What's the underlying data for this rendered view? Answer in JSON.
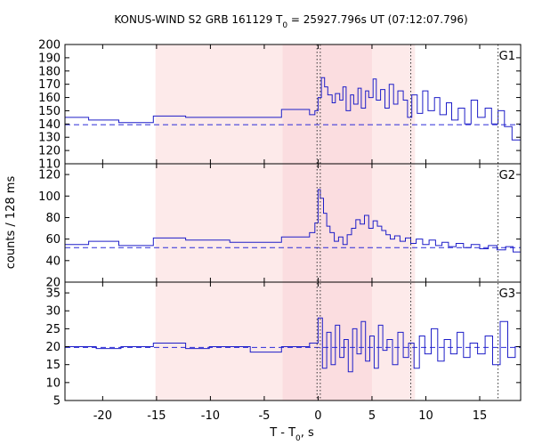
{
  "chart_data": {
    "type": "line",
    "title": "KONUS-WIND S2 GRB 161129 T",
    "title_sub": "0",
    "title_rest": " = 25927.796s UT (07:12:07.796)",
    "xlabel": "T - T",
    "xlabel_sub": "0",
    "xlabel_rest": ", s",
    "ylabel": "counts / 128 ms",
    "xlim": [
      -23.5,
      18.8
    ],
    "xticks": [
      "-20",
      "-15",
      "-10",
      "-5",
      "0",
      "5",
      "10",
      "15"
    ],
    "xtick_values": [
      -20,
      -15,
      -10,
      -5,
      0,
      5,
      10,
      15
    ],
    "shaded_regions": [
      {
        "from": -15.1,
        "to": 9.0,
        "color": "#fdeaea"
      },
      {
        "from": -3.3,
        "to": 5.0,
        "color": "#fbdde0"
      }
    ],
    "vertical_markers": [
      -0.1,
      0.2,
      8.6,
      16.7
    ],
    "panels": [
      {
        "name": "G1",
        "ylim": [
          110,
          200
        ],
        "yticks": [
          "110",
          "120",
          "130",
          "140",
          "150",
          "160",
          "170",
          "180",
          "190",
          "200"
        ],
        "ytick_values": [
          110,
          120,
          130,
          140,
          150,
          160,
          170,
          180,
          190,
          200
        ],
        "background": 139.5,
        "series": [
          [
            -23.5,
            145
          ],
          [
            -21.3,
            143
          ],
          [
            -18.5,
            141
          ],
          [
            -15.3,
            146
          ],
          [
            -12.3,
            145
          ],
          [
            -8.2,
            145
          ],
          [
            -3.4,
            151
          ],
          [
            -0.8,
            147
          ],
          [
            -0.3,
            150
          ],
          [
            0.0,
            160
          ],
          [
            0.3,
            175
          ],
          [
            0.6,
            168
          ],
          [
            0.9,
            162
          ],
          [
            1.3,
            156
          ],
          [
            1.6,
            163
          ],
          [
            2.0,
            158
          ],
          [
            2.3,
            168
          ],
          [
            2.6,
            150
          ],
          [
            3.0,
            162
          ],
          [
            3.3,
            155
          ],
          [
            3.7,
            167
          ],
          [
            4.0,
            152
          ],
          [
            4.4,
            165
          ],
          [
            4.7,
            160
          ],
          [
            5.1,
            174
          ],
          [
            5.4,
            158
          ],
          [
            5.8,
            166
          ],
          [
            6.2,
            152
          ],
          [
            6.6,
            170
          ],
          [
            7.0,
            155
          ],
          [
            7.4,
            165
          ],
          [
            7.9,
            158
          ],
          [
            8.3,
            145
          ],
          [
            8.7,
            162
          ],
          [
            9.2,
            148
          ],
          [
            9.7,
            165
          ],
          [
            10.2,
            150
          ],
          [
            10.8,
            160
          ],
          [
            11.3,
            147
          ],
          [
            11.9,
            156
          ],
          [
            12.4,
            143
          ],
          [
            13.0,
            152
          ],
          [
            13.6,
            140
          ],
          [
            14.2,
            158
          ],
          [
            14.8,
            145
          ],
          [
            15.5,
            152
          ],
          [
            16.1,
            140
          ],
          [
            16.7,
            150
          ],
          [
            17.3,
            138
          ],
          [
            18.0,
            128
          ],
          [
            18.8,
            136
          ]
        ]
      },
      {
        "name": "G2",
        "ylim": [
          20,
          130
        ],
        "yticks": [
          "20",
          "40",
          "60",
          "80",
          "100",
          "120"
        ],
        "ytick_values": [
          20,
          40,
          60,
          80,
          100,
          120
        ],
        "background": 52,
        "series": [
          [
            -23.5,
            55
          ],
          [
            -21.3,
            58
          ],
          [
            -18.5,
            54
          ],
          [
            -15.3,
            61
          ],
          [
            -12.3,
            59
          ],
          [
            -8.2,
            57
          ],
          [
            -3.4,
            62
          ],
          [
            -0.8,
            66
          ],
          [
            -0.3,
            75
          ],
          [
            0.0,
            106
          ],
          [
            0.2,
            98
          ],
          [
            0.5,
            84
          ],
          [
            0.8,
            72
          ],
          [
            1.1,
            66
          ],
          [
            1.5,
            58
          ],
          [
            1.9,
            62
          ],
          [
            2.3,
            55
          ],
          [
            2.7,
            64
          ],
          [
            3.1,
            70
          ],
          [
            3.5,
            78
          ],
          [
            3.9,
            74
          ],
          [
            4.3,
            82
          ],
          [
            4.7,
            70
          ],
          [
            5.1,
            77
          ],
          [
            5.5,
            72
          ],
          [
            5.9,
            68
          ],
          [
            6.3,
            64
          ],
          [
            6.7,
            60
          ],
          [
            7.1,
            63
          ],
          [
            7.6,
            58
          ],
          [
            8.1,
            61
          ],
          [
            8.6,
            56
          ],
          [
            9.1,
            60
          ],
          [
            9.7,
            55
          ],
          [
            10.3,
            59
          ],
          [
            10.9,
            54
          ],
          [
            11.5,
            57
          ],
          [
            12.1,
            53
          ],
          [
            12.8,
            56
          ],
          [
            13.5,
            52
          ],
          [
            14.2,
            55
          ],
          [
            15.0,
            51
          ],
          [
            15.8,
            54
          ],
          [
            16.6,
            50
          ],
          [
            17.4,
            53
          ],
          [
            18.1,
            48
          ],
          [
            18.8,
            50
          ]
        ]
      },
      {
        "name": "G3",
        "ylim": [
          5,
          38
        ],
        "yticks": [
          "5",
          "10",
          "15",
          "20",
          "25",
          "30",
          "35"
        ],
        "ytick_values": [
          5,
          10,
          15,
          20,
          25,
          30,
          35
        ],
        "background": 19.8,
        "series": [
          [
            -23.5,
            20
          ],
          [
            -20.6,
            19.5
          ],
          [
            -18.3,
            20
          ],
          [
            -15.3,
            21
          ],
          [
            -12.3,
            19.5
          ],
          [
            -10.1,
            20
          ],
          [
            -6.3,
            18.5
          ],
          [
            -3.4,
            20
          ],
          [
            -0.8,
            21
          ],
          [
            0.0,
            28
          ],
          [
            0.4,
            14
          ],
          [
            0.8,
            24
          ],
          [
            1.2,
            15
          ],
          [
            1.6,
            26
          ],
          [
            2.0,
            17
          ],
          [
            2.4,
            22
          ],
          [
            2.8,
            13
          ],
          [
            3.2,
            25
          ],
          [
            3.6,
            18
          ],
          [
            4.0,
            27
          ],
          [
            4.4,
            16
          ],
          [
            4.8,
            23
          ],
          [
            5.2,
            14
          ],
          [
            5.6,
            26
          ],
          [
            6.0,
            19
          ],
          [
            6.4,
            22
          ],
          [
            6.9,
            15
          ],
          [
            7.4,
            24
          ],
          [
            7.9,
            17
          ],
          [
            8.4,
            21
          ],
          [
            8.9,
            14
          ],
          [
            9.4,
            23
          ],
          [
            9.9,
            18
          ],
          [
            10.5,
            25
          ],
          [
            11.1,
            16
          ],
          [
            11.7,
            22
          ],
          [
            12.3,
            18
          ],
          [
            12.9,
            24
          ],
          [
            13.5,
            17
          ],
          [
            14.1,
            21
          ],
          [
            14.8,
            18
          ],
          [
            15.5,
            23
          ],
          [
            16.2,
            15
          ],
          [
            16.9,
            27
          ],
          [
            17.6,
            17
          ],
          [
            18.3,
            20
          ],
          [
            18.8,
            14
          ]
        ]
      }
    ]
  }
}
